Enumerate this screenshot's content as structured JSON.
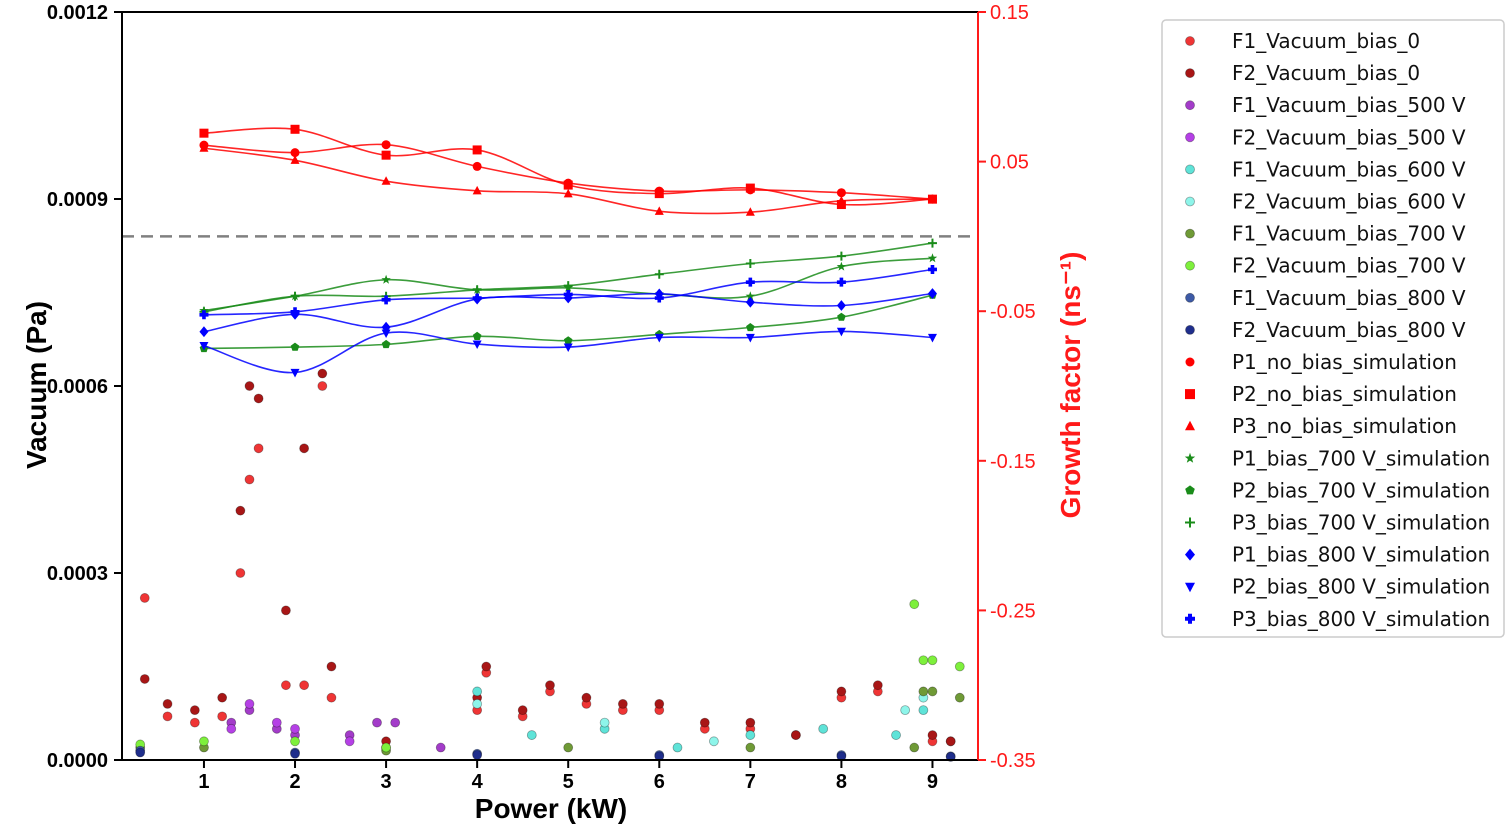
{
  "chart_data": {
    "type": "scatter",
    "xlabel": "Power (kW)",
    "ylabel_left": "Vacuum (Pa)",
    "ylabel_right": "Growth factor (ns⁻¹)",
    "xlim": [
      0.1,
      9.5
    ],
    "xticks": [
      "1",
      "2",
      "3",
      "4",
      "5",
      "6",
      "7",
      "8",
      "9"
    ],
    "ylim_left": [
      0,
      0.0012
    ],
    "yticks_left": [
      "0.0000",
      "0.0003",
      "0.0006",
      "0.0009",
      "0.0012"
    ],
    "ylim_right": [
      -0.35,
      0.15
    ],
    "yticks_right": [
      "-0.35",
      "-0.25",
      "-0.15",
      "-0.05",
      "0.05",
      "0.15"
    ],
    "right_axis_color": "#ff1a1a",
    "reference_line_right": 0.0,
    "grid": false,
    "legend_position": "outside-right",
    "legend": [
      {
        "label": "F1_Vacuum_bias_0",
        "color": "#ef3535",
        "marker": "circle"
      },
      {
        "label": "F2_Vacuum_bias_0",
        "color": "#a81616",
        "marker": "circle"
      },
      {
        "label": "F1_Vacuum_bias_500 V",
        "color": "#a33cc9",
        "marker": "circle"
      },
      {
        "label": "F2_Vacuum_bias_500 V",
        "color": "#b540e6",
        "marker": "circle"
      },
      {
        "label": "F1_Vacuum_bias_600 V",
        "color": "#5fe3d8",
        "marker": "circle"
      },
      {
        "label": "F2_Vacuum_bias_600 V",
        "color": "#8ef5ea",
        "marker": "circle"
      },
      {
        "label": "F1_Vacuum_bias_700 V",
        "color": "#6f9a36",
        "marker": "circle"
      },
      {
        "label": "F2_Vacuum_bias_700 V",
        "color": "#7ef03c",
        "marker": "circle"
      },
      {
        "label": "F1_Vacuum_bias_800 V",
        "color": "#3d5aa6",
        "marker": "circle"
      },
      {
        "label": "F2_Vacuum_bias_800 V",
        "color": "#1f2e8c",
        "marker": "circle"
      },
      {
        "label": "P1_no_bias_simulation",
        "color": "#ff0000",
        "marker": "circle"
      },
      {
        "label": "P2_no_bias_simulation",
        "color": "#ff0000",
        "marker": "square"
      },
      {
        "label": "P3_no_bias_simulation",
        "color": "#ff0000",
        "marker": "triangle"
      },
      {
        "label": "P1_bias_700 V_simulation",
        "color": "#1a8c1a",
        "marker": "star"
      },
      {
        "label": "P2_bias_700 V_simulation",
        "color": "#1a8c1a",
        "marker": "pentagon"
      },
      {
        "label": "P3_bias_700 V_simulation",
        "color": "#1a8c1a",
        "marker": "plus"
      },
      {
        "label": "P1_bias_800 V_simulation",
        "color": "#0000ff",
        "marker": "diamond"
      },
      {
        "label": "P2_bias_800 V_simulation",
        "color": "#0000ff",
        "marker": "triangle-down"
      },
      {
        "label": "P3_bias_800 V_simulation",
        "color": "#0000ff",
        "marker": "plus-filled"
      }
    ],
    "simulation_series": [
      {
        "name": "P1_no_bias_simulation",
        "axis": "right",
        "x": [
          1,
          2,
          3,
          4,
          5,
          6,
          7,
          8,
          9
        ],
        "y": [
          0.061,
          0.056,
          0.0613,
          0.0468,
          0.0356,
          0.0303,
          0.0311,
          0.0292,
          0.0249
        ]
      },
      {
        "name": "P2_no_bias_simulation",
        "axis": "right",
        "x": [
          1,
          2,
          3,
          4,
          5,
          6,
          7,
          8,
          9
        ],
        "y": [
          0.069,
          0.0716,
          0.0543,
          0.0578,
          0.0343,
          0.0286,
          0.0323,
          0.0213,
          0.0249
        ]
      },
      {
        "name": "P3_no_bias_simulation",
        "axis": "right",
        "x": [
          1,
          2,
          3,
          4,
          5,
          6,
          7,
          8,
          9
        ],
        "y": [
          0.059,
          0.0509,
          0.0369,
          0.0305,
          0.0285,
          0.0168,
          0.0162,
          0.0238,
          0.0249
        ]
      },
      {
        "name": "P1_bias_700 V_simulation",
        "axis": "right",
        "x": [
          1,
          2,
          3,
          4,
          5,
          6,
          7,
          8,
          9
        ],
        "y": [
          -0.0496,
          -0.04,
          -0.029,
          -0.0357,
          -0.0344,
          -0.0385,
          -0.04,
          -0.0202,
          -0.0146
        ]
      },
      {
        "name": "P2_bias_700 V_simulation",
        "axis": "right",
        "x": [
          1,
          2,
          3,
          4,
          5,
          6,
          7,
          8,
          9
        ],
        "y": [
          -0.0749,
          -0.074,
          -0.0722,
          -0.0668,
          -0.0697,
          -0.0655,
          -0.0609,
          -0.054,
          -0.0393
        ]
      },
      {
        "name": "P3_bias_700 V_simulation",
        "axis": "right",
        "x": [
          1,
          2,
          3,
          4,
          5,
          6,
          7,
          8,
          9
        ],
        "y": [
          -0.0504,
          -0.04,
          -0.04,
          -0.0357,
          -0.0329,
          -0.0253,
          -0.0181,
          -0.0132,
          -0.0045
        ]
      },
      {
        "name": "P1_bias_800 V_simulation",
        "axis": "right",
        "x": [
          1,
          2,
          3,
          4,
          5,
          6,
          7,
          8,
          9
        ],
        "y": [
          -0.0637,
          -0.0521,
          -0.0607,
          -0.0419,
          -0.0412,
          -0.0384,
          -0.044,
          -0.0462,
          -0.0382
        ]
      },
      {
        "name": "P2_bias_800 V_simulation",
        "axis": "right",
        "x": [
          1,
          2,
          3,
          4,
          5,
          6,
          7,
          8,
          9
        ],
        "y": [
          -0.073,
          -0.091,
          -0.0646,
          -0.072,
          -0.074,
          -0.0676,
          -0.0676,
          -0.0635,
          -0.0676
        ]
      },
      {
        "name": "P3_bias_800 V_simulation",
        "axis": "right",
        "x": [
          1,
          2,
          3,
          4,
          5,
          6,
          7,
          8,
          9
        ],
        "y": [
          -0.0524,
          -0.0504,
          -0.0424,
          -0.0412,
          -0.0388,
          -0.0412,
          -0.0306,
          -0.0306,
          -0.0221
        ]
      }
    ],
    "measured_series": [
      {
        "name": "F1_Vacuum_bias_0",
        "axis": "left",
        "x": [
          0.35,
          0.6,
          0.9,
          1.2,
          1.4,
          1.5,
          1.6,
          1.9,
          2.1,
          2.3,
          2.4,
          3.0,
          4.0,
          4.1,
          4.5,
          4.8,
          5.2,
          5.6,
          6.0,
          6.5,
          7.0,
          7.5,
          8.0,
          8.4,
          9.0,
          9.2
        ],
        "y": [
          0.00026,
          7e-05,
          6e-05,
          7e-05,
          0.0003,
          0.00045,
          0.0005,
          0.00012,
          0.00012,
          0.0006,
          0.0001,
          2e-05,
          8e-05,
          0.00014,
          7e-05,
          0.00011,
          9e-05,
          8e-05,
          8e-05,
          5e-05,
          5e-05,
          4e-05,
          0.0001,
          0.00011,
          3e-05,
          3e-05
        ]
      },
      {
        "name": "F2_Vacuum_bias_0",
        "axis": "left",
        "x": [
          0.35,
          0.6,
          0.9,
          1.2,
          1.4,
          1.5,
          1.6,
          1.9,
          2.1,
          2.3,
          2.4,
          3.0,
          4.0,
          4.1,
          4.5,
          4.8,
          5.2,
          5.6,
          6.0,
          6.5,
          7.0,
          7.5,
          8.0,
          8.4,
          9.0,
          9.2
        ],
        "y": [
          0.00013,
          9e-05,
          8e-05,
          0.0001,
          0.0004,
          0.0006,
          0.00058,
          0.00024,
          0.0005,
          0.00062,
          0.00015,
          3e-05,
          0.0001,
          0.00015,
          8e-05,
          0.00012,
          0.0001,
          9e-05,
          9e-05,
          6e-05,
          6e-05,
          4e-05,
          0.00011,
          0.00012,
          4e-05,
          3e-05
        ]
      },
      {
        "name": "F1_Vacuum_bias_500 V",
        "axis": "left",
        "x": [
          1.3,
          1.5,
          1.8,
          2.0,
          2.6,
          2.9,
          3.1,
          3.6
        ],
        "y": [
          6e-05,
          8e-05,
          5e-05,
          4e-05,
          4e-05,
          6e-05,
          6e-05,
          2e-05
        ]
      },
      {
        "name": "F2_Vacuum_bias_500 V",
        "axis": "left",
        "x": [
          1.3,
          1.5,
          1.8,
          2.0,
          2.6
        ],
        "y": [
          5e-05,
          9e-05,
          6e-05,
          5e-05,
          3e-05
        ]
      },
      {
        "name": "F1_Vacuum_bias_600 V",
        "axis": "left",
        "x": [
          4.0,
          4.6,
          5.4,
          6.2,
          7.0,
          7.8,
          8.6,
          8.9
        ],
        "y": [
          0.00011,
          4e-05,
          5e-05,
          2e-05,
          4e-05,
          5e-05,
          4e-05,
          8e-05
        ]
      },
      {
        "name": "F2_Vacuum_bias_600 V",
        "axis": "left",
        "x": [
          4.0,
          5.4,
          6.6,
          8.7,
          8.9
        ],
        "y": [
          9e-05,
          6e-05,
          3e-05,
          8e-05,
          0.0001
        ]
      },
      {
        "name": "F1_Vacuum_bias_700 V",
        "axis": "left",
        "x": [
          0.3,
          1.0,
          3.0,
          5.0,
          7.0,
          8.8,
          8.9,
          9.0,
          9.3
        ],
        "y": [
          2e-05,
          2e-05,
          1.5e-05,
          2e-05,
          2e-05,
          2e-05,
          0.00011,
          0.00011,
          0.0001
        ]
      },
      {
        "name": "F2_Vacuum_bias_700 V",
        "axis": "left",
        "x": [
          0.3,
          1.0,
          2.0,
          3.0,
          8.8,
          8.9,
          9.0,
          9.3
        ],
        "y": [
          2.5e-05,
          3e-05,
          3e-05,
          2e-05,
          0.00025,
          0.00016,
          0.00016,
          0.00015
        ]
      },
      {
        "name": "F1_Vacuum_bias_800 V",
        "axis": "left",
        "x": [
          0.3,
          2.0,
          4.0,
          6.0,
          8.0,
          9.2
        ],
        "y": [
          1.5e-05,
          1.2e-05,
          1e-05,
          8e-06,
          8e-06,
          6e-06
        ]
      },
      {
        "name": "F2_Vacuum_bias_800 V",
        "axis": "left",
        "x": [
          0.3,
          2.0,
          4.0,
          6.0,
          8.0,
          9.2
        ],
        "y": [
          1.2e-05,
          1e-05,
          8e-06,
          6e-06,
          6e-06,
          5e-06
        ]
      }
    ]
  }
}
